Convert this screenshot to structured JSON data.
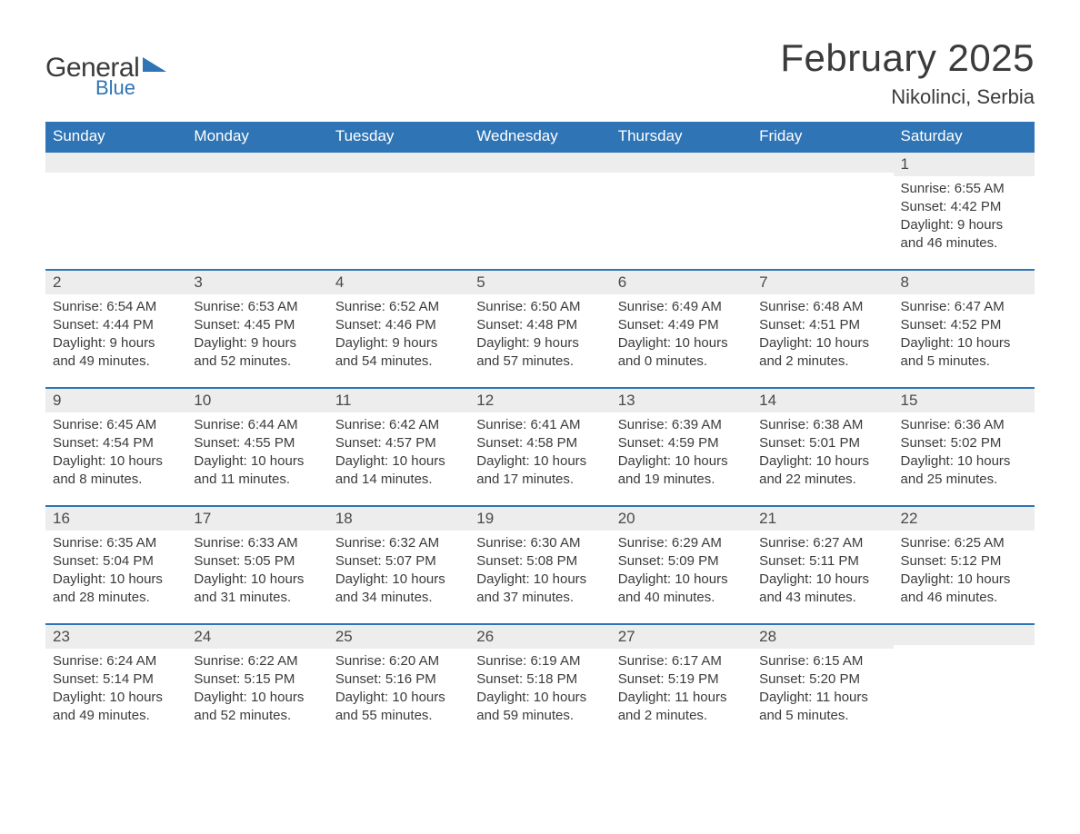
{
  "brand": {
    "name_a": "General",
    "name_b": "Blue"
  },
  "title": "February 2025",
  "subtitle": "Nikolinci, Serbia",
  "colors": {
    "accent": "#2f74b5",
    "header_text": "#ffffff",
    "daynum_bg": "#ededed",
    "body_text": "#3b3b3b",
    "page_bg": "#ffffff"
  },
  "dow": [
    "Sunday",
    "Monday",
    "Tuesday",
    "Wednesday",
    "Thursday",
    "Friday",
    "Saturday"
  ],
  "weeks": [
    [
      null,
      null,
      null,
      null,
      null,
      null,
      {
        "n": "1",
        "sr": "Sunrise: 6:55 AM",
        "ss": "Sunset: 4:42 PM",
        "dl": "Daylight: 9 hours and 46 minutes."
      }
    ],
    [
      {
        "n": "2",
        "sr": "Sunrise: 6:54 AM",
        "ss": "Sunset: 4:44 PM",
        "dl": "Daylight: 9 hours and 49 minutes."
      },
      {
        "n": "3",
        "sr": "Sunrise: 6:53 AM",
        "ss": "Sunset: 4:45 PM",
        "dl": "Daylight: 9 hours and 52 minutes."
      },
      {
        "n": "4",
        "sr": "Sunrise: 6:52 AM",
        "ss": "Sunset: 4:46 PM",
        "dl": "Daylight: 9 hours and 54 minutes."
      },
      {
        "n": "5",
        "sr": "Sunrise: 6:50 AM",
        "ss": "Sunset: 4:48 PM",
        "dl": "Daylight: 9 hours and 57 minutes."
      },
      {
        "n": "6",
        "sr": "Sunrise: 6:49 AM",
        "ss": "Sunset: 4:49 PM",
        "dl": "Daylight: 10 hours and 0 minutes."
      },
      {
        "n": "7",
        "sr": "Sunrise: 6:48 AM",
        "ss": "Sunset: 4:51 PM",
        "dl": "Daylight: 10 hours and 2 minutes."
      },
      {
        "n": "8",
        "sr": "Sunrise: 6:47 AM",
        "ss": "Sunset: 4:52 PM",
        "dl": "Daylight: 10 hours and 5 minutes."
      }
    ],
    [
      {
        "n": "9",
        "sr": "Sunrise: 6:45 AM",
        "ss": "Sunset: 4:54 PM",
        "dl": "Daylight: 10 hours and 8 minutes."
      },
      {
        "n": "10",
        "sr": "Sunrise: 6:44 AM",
        "ss": "Sunset: 4:55 PM",
        "dl": "Daylight: 10 hours and 11 minutes."
      },
      {
        "n": "11",
        "sr": "Sunrise: 6:42 AM",
        "ss": "Sunset: 4:57 PM",
        "dl": "Daylight: 10 hours and 14 minutes."
      },
      {
        "n": "12",
        "sr": "Sunrise: 6:41 AM",
        "ss": "Sunset: 4:58 PM",
        "dl": "Daylight: 10 hours and 17 minutes."
      },
      {
        "n": "13",
        "sr": "Sunrise: 6:39 AM",
        "ss": "Sunset: 4:59 PM",
        "dl": "Daylight: 10 hours and 19 minutes."
      },
      {
        "n": "14",
        "sr": "Sunrise: 6:38 AM",
        "ss": "Sunset: 5:01 PM",
        "dl": "Daylight: 10 hours and 22 minutes."
      },
      {
        "n": "15",
        "sr": "Sunrise: 6:36 AM",
        "ss": "Sunset: 5:02 PM",
        "dl": "Daylight: 10 hours and 25 minutes."
      }
    ],
    [
      {
        "n": "16",
        "sr": "Sunrise: 6:35 AM",
        "ss": "Sunset: 5:04 PM",
        "dl": "Daylight: 10 hours and 28 minutes."
      },
      {
        "n": "17",
        "sr": "Sunrise: 6:33 AM",
        "ss": "Sunset: 5:05 PM",
        "dl": "Daylight: 10 hours and 31 minutes."
      },
      {
        "n": "18",
        "sr": "Sunrise: 6:32 AM",
        "ss": "Sunset: 5:07 PM",
        "dl": "Daylight: 10 hours and 34 minutes."
      },
      {
        "n": "19",
        "sr": "Sunrise: 6:30 AM",
        "ss": "Sunset: 5:08 PM",
        "dl": "Daylight: 10 hours and 37 minutes."
      },
      {
        "n": "20",
        "sr": "Sunrise: 6:29 AM",
        "ss": "Sunset: 5:09 PM",
        "dl": "Daylight: 10 hours and 40 minutes."
      },
      {
        "n": "21",
        "sr": "Sunrise: 6:27 AM",
        "ss": "Sunset: 5:11 PM",
        "dl": "Daylight: 10 hours and 43 minutes."
      },
      {
        "n": "22",
        "sr": "Sunrise: 6:25 AM",
        "ss": "Sunset: 5:12 PM",
        "dl": "Daylight: 10 hours and 46 minutes."
      }
    ],
    [
      {
        "n": "23",
        "sr": "Sunrise: 6:24 AM",
        "ss": "Sunset: 5:14 PM",
        "dl": "Daylight: 10 hours and 49 minutes."
      },
      {
        "n": "24",
        "sr": "Sunrise: 6:22 AM",
        "ss": "Sunset: 5:15 PM",
        "dl": "Daylight: 10 hours and 52 minutes."
      },
      {
        "n": "25",
        "sr": "Sunrise: 6:20 AM",
        "ss": "Sunset: 5:16 PM",
        "dl": "Daylight: 10 hours and 55 minutes."
      },
      {
        "n": "26",
        "sr": "Sunrise: 6:19 AM",
        "ss": "Sunset: 5:18 PM",
        "dl": "Daylight: 10 hours and 59 minutes."
      },
      {
        "n": "27",
        "sr": "Sunrise: 6:17 AM",
        "ss": "Sunset: 5:19 PM",
        "dl": "Daylight: 11 hours and 2 minutes."
      },
      {
        "n": "28",
        "sr": "Sunrise: 6:15 AM",
        "ss": "Sunset: 5:20 PM",
        "dl": "Daylight: 11 hours and 5 minutes."
      },
      null
    ]
  ]
}
